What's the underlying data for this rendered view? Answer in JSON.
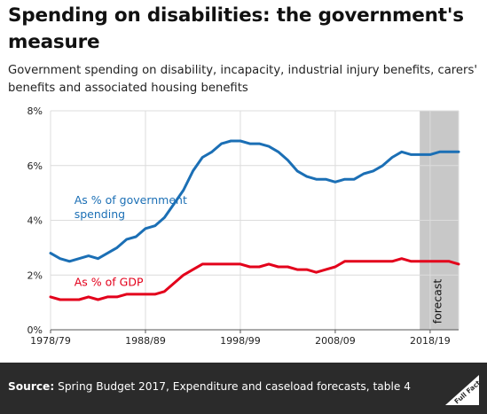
{
  "header": {
    "title": "Spending on disabilities: the government's measure",
    "subtitle": "Government spending on disability, incapacity, industrial injury benefits, carers' benefits and associated housing benefits"
  },
  "footer": {
    "source_label": "Source:",
    "source_text": "Spring Budget 2017, Expenditure and caseload forecasts, table 4",
    "logo_text": "Full Fact"
  },
  "chart_data": {
    "type": "line",
    "title": "Spending on disabilities: the government's measure",
    "subtitle": "Government spending on disability, incapacity, industrial injury benefits, carers' benefits and associated housing benefits",
    "x_ticks": [
      "1978/79",
      "1988/89",
      "1998/99",
      "2008/09",
      "2018/19"
    ],
    "x_tick_years": [
      1978,
      1988,
      1998,
      2008,
      2018
    ],
    "xlim": [
      1978,
      2021
    ],
    "y_ticks": [
      "0%",
      "2%",
      "4%",
      "6%",
      "8%"
    ],
    "ylim": [
      0,
      8
    ],
    "grid": true,
    "forecast": {
      "label": "forecast",
      "start": 2016.9,
      "end": 2021,
      "color": "#c8c8c8"
    },
    "series": [
      {
        "name": "As % of government spending",
        "color": "#1b6fb5",
        "x": [
          1978,
          1979,
          1980,
          1981,
          1982,
          1983,
          1984,
          1985,
          1986,
          1987,
          1988,
          1989,
          1990,
          1991,
          1992,
          1993,
          1994,
          1995,
          1996,
          1997,
          1998,
          1999,
          2000,
          2001,
          2002,
          2003,
          2004,
          2005,
          2006,
          2007,
          2008,
          2009,
          2010,
          2011,
          2012,
          2013,
          2014,
          2015,
          2016,
          2017,
          2018,
          2019,
          2020,
          2021
        ],
        "values": [
          2.8,
          2.6,
          2.5,
          2.6,
          2.7,
          2.6,
          2.8,
          3.0,
          3.3,
          3.4,
          3.7,
          3.8,
          4.1,
          4.6,
          5.1,
          5.8,
          6.3,
          6.5,
          6.8,
          6.9,
          6.9,
          6.8,
          6.8,
          6.7,
          6.5,
          6.2,
          5.8,
          5.6,
          5.5,
          5.5,
          5.4,
          5.5,
          5.5,
          5.7,
          5.8,
          6.0,
          6.3,
          6.5,
          6.4,
          6.4,
          6.4,
          6.5,
          6.5,
          6.5
        ]
      },
      {
        "name": "As % of GDP",
        "color": "#e3001b",
        "x": [
          1978,
          1979,
          1980,
          1981,
          1982,
          1983,
          1984,
          1985,
          1986,
          1987,
          1988,
          1989,
          1990,
          1991,
          1992,
          1993,
          1994,
          1995,
          1996,
          1997,
          1998,
          1999,
          2000,
          2001,
          2002,
          2003,
          2004,
          2005,
          2006,
          2007,
          2008,
          2009,
          2010,
          2011,
          2012,
          2013,
          2014,
          2015,
          2016,
          2017,
          2018,
          2019,
          2020,
          2021
        ],
        "values": [
          1.2,
          1.1,
          1.1,
          1.1,
          1.2,
          1.1,
          1.2,
          1.2,
          1.3,
          1.3,
          1.3,
          1.3,
          1.4,
          1.7,
          2.0,
          2.2,
          2.4,
          2.4,
          2.4,
          2.4,
          2.4,
          2.3,
          2.3,
          2.4,
          2.3,
          2.3,
          2.2,
          2.2,
          2.1,
          2.2,
          2.3,
          2.5,
          2.5,
          2.5,
          2.5,
          2.5,
          2.5,
          2.6,
          2.5,
          2.5,
          2.5,
          2.5,
          2.5,
          2.4
        ]
      }
    ],
    "annotations": [
      {
        "text": "As % of government",
        "text2": "spending",
        "series": 0,
        "at_year": 1980.5,
        "at_value": 4.6,
        "color": "#1b6fb5"
      },
      {
        "text": "As % of GDP",
        "series": 1,
        "at_year": 1980.5,
        "at_value": 1.6,
        "color": "#e3001b"
      }
    ]
  }
}
